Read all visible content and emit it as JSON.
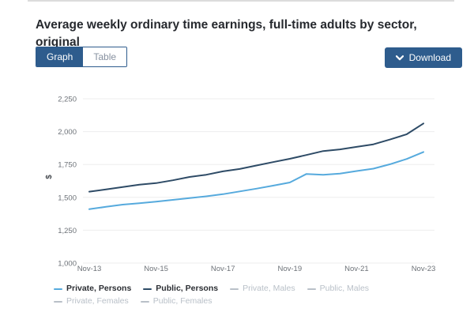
{
  "page": {
    "title": "Average weekly ordinary time earnings, full-time adults by sector, original"
  },
  "toolbar": {
    "view_toggle": [
      {
        "label": "Graph",
        "active": true
      },
      {
        "label": "Table",
        "active": false
      }
    ],
    "download_label": "Download",
    "download_icon": "chevron-down-icon"
  },
  "colors": {
    "accent": "#2e5c8d",
    "grid": "#ededee",
    "tick_text": "#6d7278",
    "axis_title": "#4a4e54",
    "inactive_legend": "#b9c0c8"
  },
  "chart_data": {
    "type": "line",
    "title": "Average weekly ordinary time earnings, full-time adults by sector, original",
    "ylabel": "$",
    "xlabel": "",
    "ylim": [
      1000,
      2250
    ],
    "grid": true,
    "legend_position": "bottom",
    "x": [
      "Nov-13",
      "May-14",
      "Nov-14",
      "May-15",
      "Nov-15",
      "May-16",
      "Nov-16",
      "May-17",
      "Nov-17",
      "May-18",
      "Nov-18",
      "May-19",
      "Nov-19",
      "May-20",
      "Nov-20",
      "May-21",
      "Nov-21",
      "May-22",
      "Nov-22",
      "May-23",
      "Nov-23"
    ],
    "x_tick_indices": [
      0,
      4,
      8,
      12,
      16,
      20
    ],
    "x_tick_labels": [
      "Nov-13",
      "Nov-15",
      "Nov-17",
      "Nov-19",
      "Nov-21",
      "Nov-23"
    ],
    "y_ticks": [
      {
        "label": "2,250",
        "value": 2250
      },
      {
        "label": "2,000",
        "value": 2000
      },
      {
        "label": "1,750",
        "value": 1750
      },
      {
        "label": "1,500",
        "value": 1500
      },
      {
        "label": "1,250",
        "value": 1250
      },
      {
        "label": "1,000",
        "value": 1000
      }
    ],
    "series": [
      {
        "name": "Private, Persons",
        "color": "#56aadd",
        "active": true,
        "values": [
          1410,
          1428,
          1445,
          1455,
          1467,
          1481,
          1494,
          1508,
          1524,
          1545,
          1566,
          1589,
          1613,
          1678,
          1672,
          1681,
          1700,
          1718,
          1752,
          1792,
          1845
        ]
      },
      {
        "name": "Public, Persons",
        "color": "#2e4b66",
        "active": true,
        "values": [
          1543,
          1560,
          1578,
          1597,
          1608,
          1630,
          1655,
          1672,
          1698,
          1716,
          1742,
          1768,
          1793,
          1822,
          1852,
          1865,
          1884,
          1903,
          1940,
          1980,
          2062
        ]
      },
      {
        "name": "Private, Males",
        "color": "#b9c0c8",
        "active": false,
        "values": []
      },
      {
        "name": "Public, Males",
        "color": "#b9c0c8",
        "active": false,
        "values": []
      },
      {
        "name": "Private, Females",
        "color": "#b9c0c8",
        "active": false,
        "values": []
      },
      {
        "name": "Public, Females",
        "color": "#b9c0c8",
        "active": false,
        "values": []
      }
    ]
  }
}
